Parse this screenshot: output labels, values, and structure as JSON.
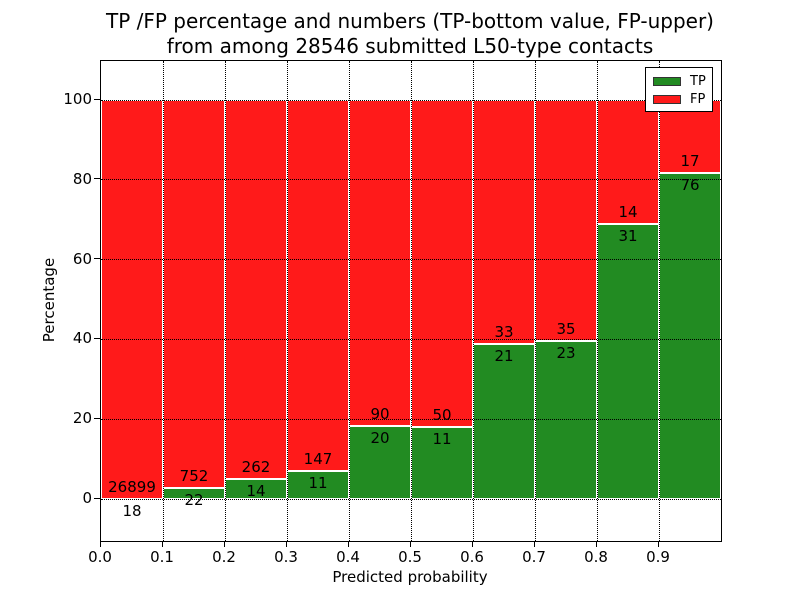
{
  "title": {
    "line1": "TP /FP percentage and numbers (TP-bottom value, FP-upper)",
    "line2": "from among 28546 submitted L50-type contacts"
  },
  "axes": {
    "x_label": "Predicted probability",
    "y_label": "Percentage",
    "x_ticks": [
      "0.0",
      "0.1",
      "0.2",
      "0.3",
      "0.4",
      "0.5",
      "0.6",
      "0.7",
      "0.8",
      "0.9"
    ],
    "y_ticks": [
      0,
      20,
      40,
      60,
      80,
      100
    ]
  },
  "legend": {
    "items": [
      {
        "label": "TP",
        "color": "#228b22"
      },
      {
        "label": "FP",
        "color": "#ff1a1a"
      }
    ]
  },
  "colors": {
    "tp_green": "#228b22",
    "fp_red": "#ff1a1a",
    "grid": "#000000",
    "bar_edge": "#ffffff"
  },
  "chart_data": {
    "type": "bar",
    "stacked": true,
    "normalized_to_percent": true,
    "title": "TP /FP percentage and numbers (TP-bottom value, FP-upper) from among 28546 submitted L50-type contacts",
    "xlabel": "Predicted probability",
    "ylabel": "Percentage",
    "total_contacts": 28546,
    "bin_edges": [
      0.0,
      0.1,
      0.2,
      0.3,
      0.4,
      0.5,
      0.6,
      0.7,
      0.8,
      0.9,
      1.0
    ],
    "categories": [
      "0.0-0.1",
      "0.1-0.2",
      "0.2-0.3",
      "0.3-0.4",
      "0.4-0.5",
      "0.5-0.6",
      "0.6-0.7",
      "0.7-0.8",
      "0.8-0.9",
      "0.9-1.0"
    ],
    "series": [
      {
        "name": "TP",
        "color": "#228b22",
        "counts": [
          18,
          22,
          14,
          11,
          20,
          11,
          21,
          23,
          31,
          76
        ],
        "percent": [
          0.07,
          2.84,
          5.07,
          6.96,
          18.18,
          18.03,
          38.89,
          39.66,
          68.89,
          81.72
        ]
      },
      {
        "name": "FP",
        "color": "#ff1a1a",
        "counts": [
          26899,
          752,
          262,
          147,
          90,
          50,
          33,
          35,
          14,
          17
        ],
        "percent": [
          99.93,
          97.16,
          94.93,
          93.04,
          81.82,
          81.97,
          61.11,
          60.34,
          31.11,
          18.28
        ]
      }
    ],
    "bar_value_labels": "TP count below segment boundary, FP count above segment boundary",
    "xlim": [
      0.0,
      1.0
    ],
    "ylim": [
      -10.5,
      109.8
    ],
    "xticks": [
      "0.0",
      "0.1",
      "0.2",
      "0.3",
      "0.4",
      "0.5",
      "0.6",
      "0.7",
      "0.8",
      "0.9"
    ],
    "yticks": [
      0,
      20,
      40,
      60,
      80,
      100
    ],
    "grid": true,
    "grid_style": "dotted",
    "legend_position": "upper right"
  }
}
